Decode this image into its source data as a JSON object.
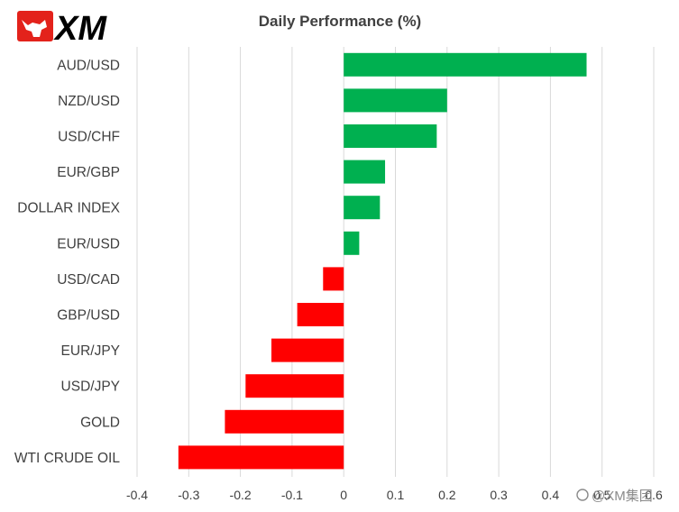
{
  "logo": {
    "text": "XM",
    "accent_color": "#e3221b",
    "text_color": "#000000"
  },
  "watermark": {
    "text": "@XM集团"
  },
  "chart_data": {
    "type": "bar",
    "orientation": "horizontal",
    "title": "Daily Performance  (%)",
    "xlabel": "",
    "ylabel": "",
    "xlim": [
      -0.4,
      0.6
    ],
    "xticks": [
      -0.4,
      -0.3,
      -0.2,
      -0.1,
      0,
      0.1,
      0.2,
      0.3,
      0.4,
      0.5,
      0.6
    ],
    "xtick_labels": [
      "-0.4",
      "-0.3",
      "-0.2",
      "-0.1",
      "0",
      "0.1",
      "0.2",
      "0.3",
      "0.4",
      "0.5",
      "0.6"
    ],
    "grid": true,
    "legend": "none",
    "positive_color": "#00b050",
    "negative_color": "#ff0000",
    "categories": [
      "AUD/USD",
      "NZD/USD",
      "USD/CHF",
      "EUR/GBP",
      "DOLLAR INDEX",
      "EUR/USD",
      "USD/CAD",
      "GBP/USD",
      "EUR/JPY",
      "USD/JPY",
      "GOLD",
      "WTI CRUDE OIL"
    ],
    "values": [
      0.47,
      0.2,
      0.18,
      0.08,
      0.07,
      0.03,
      -0.04,
      -0.09,
      -0.14,
      -0.19,
      -0.23,
      -0.32
    ]
  }
}
